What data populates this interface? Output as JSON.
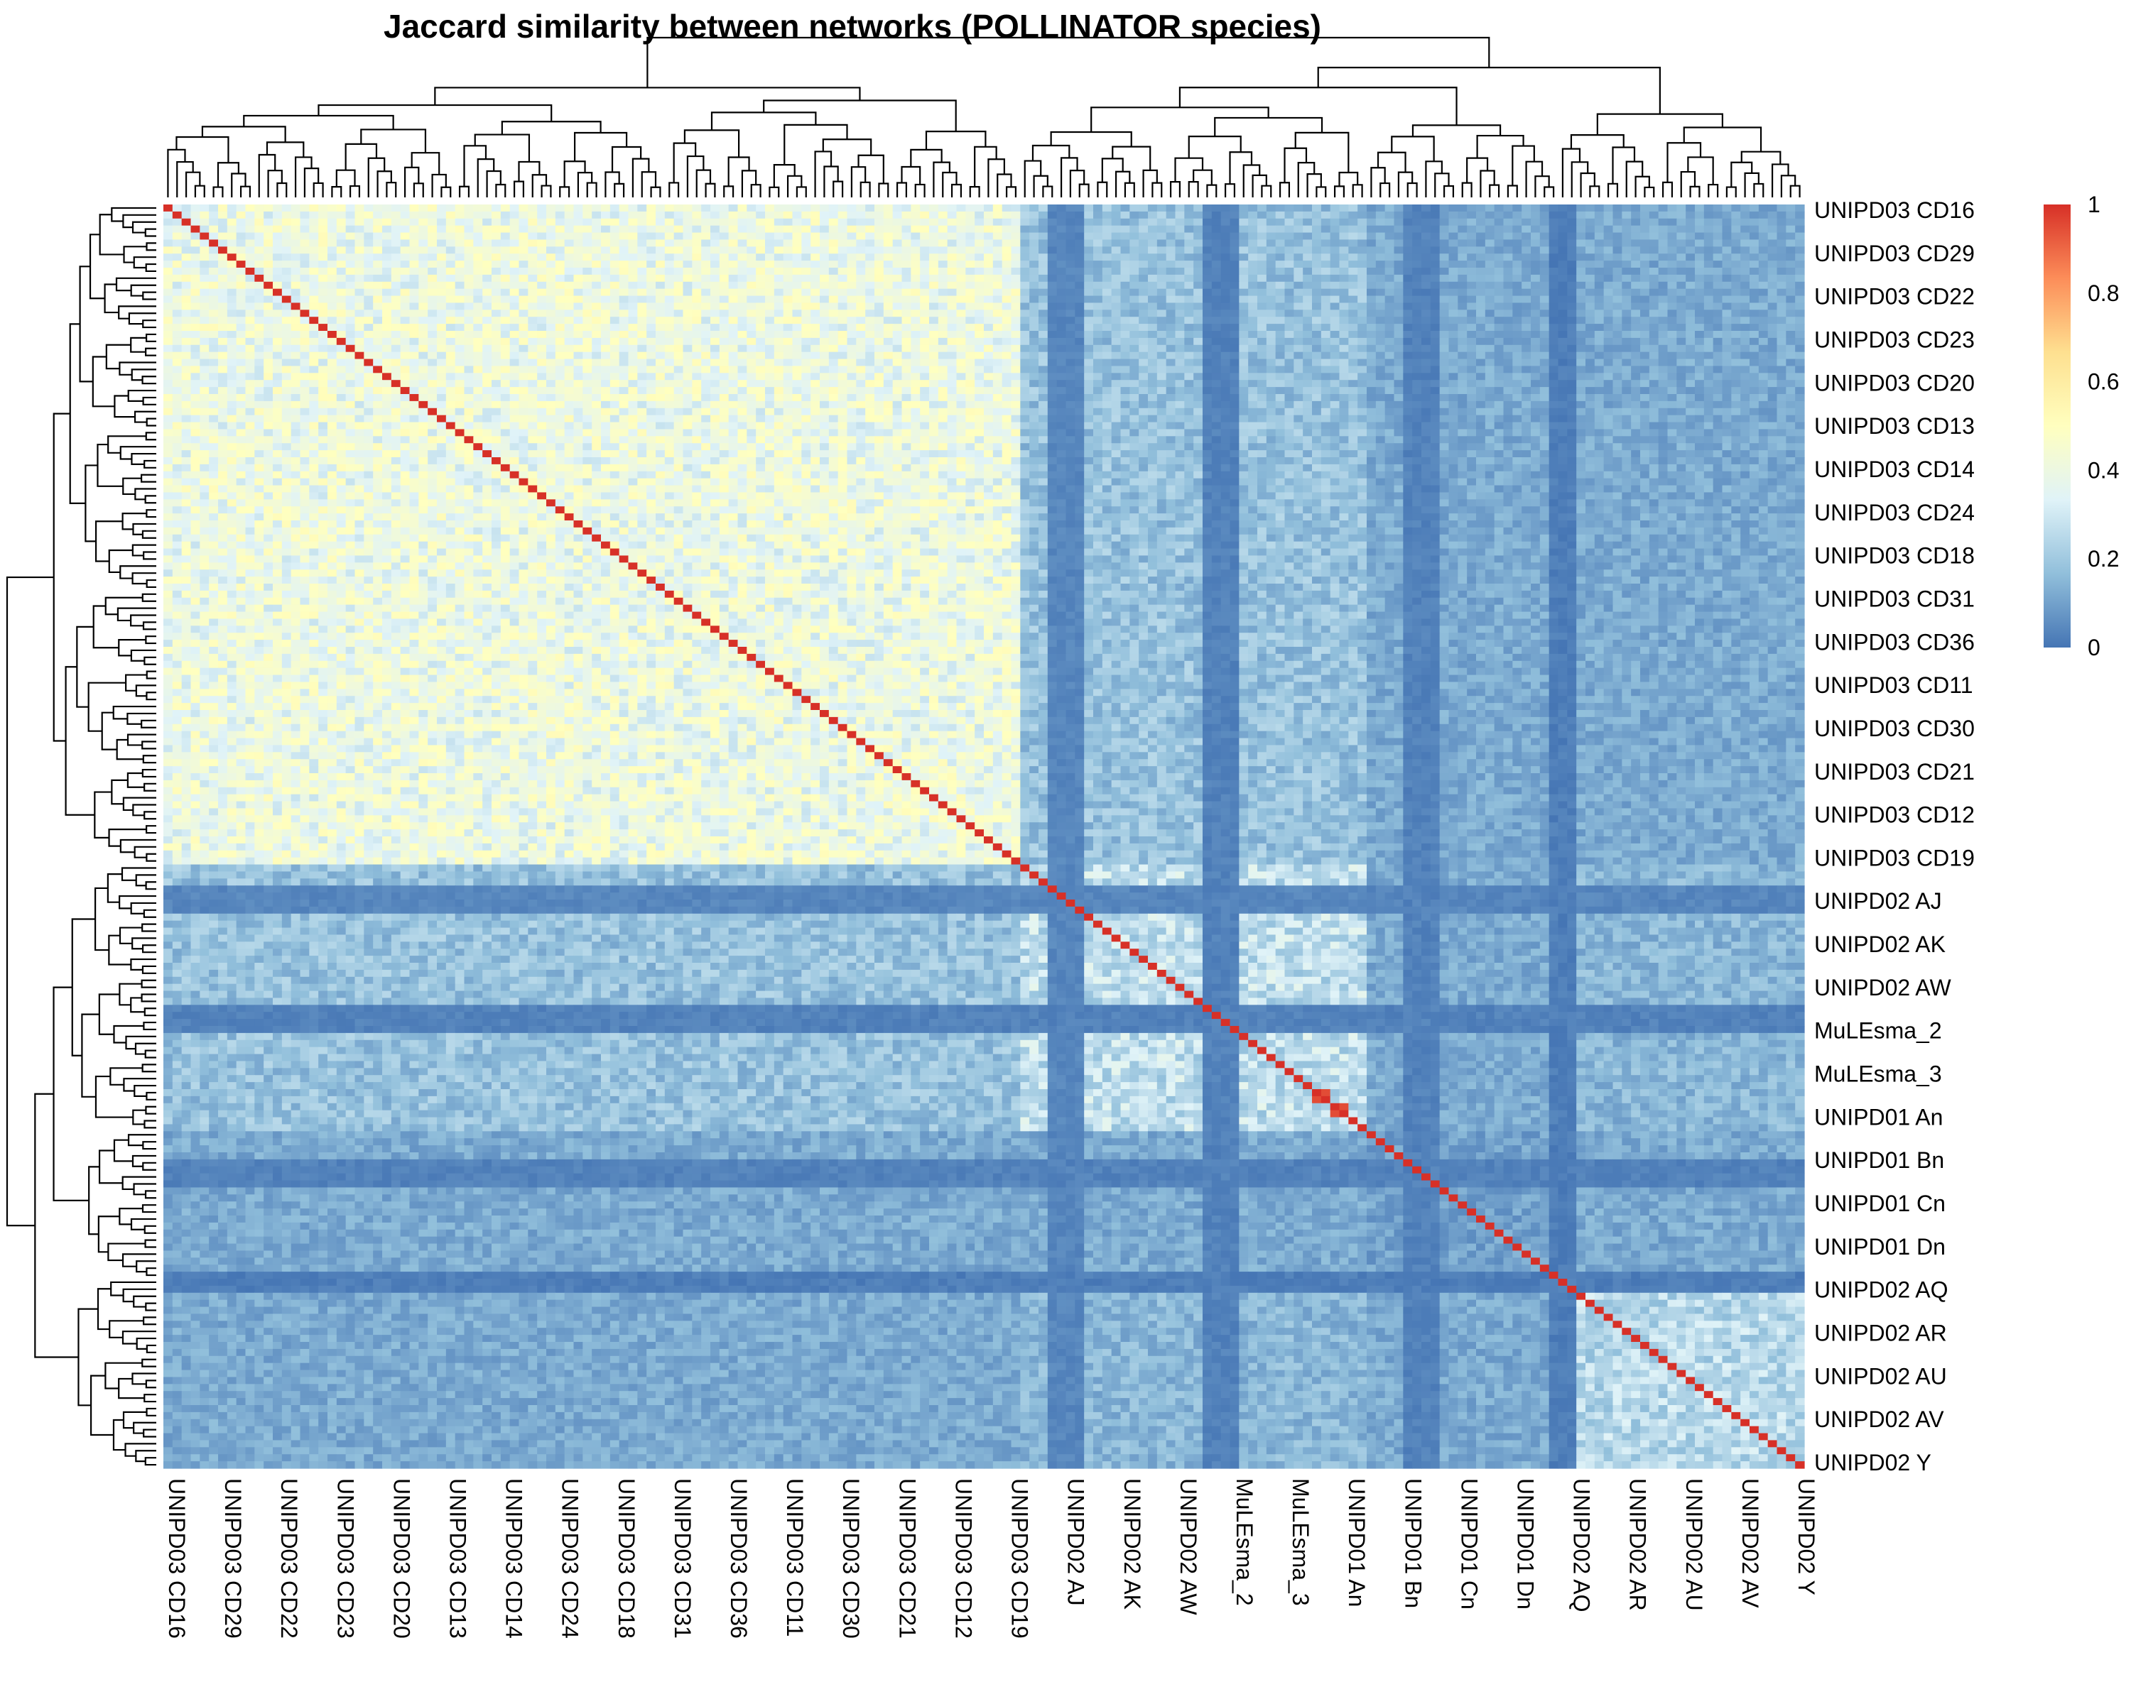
{
  "chart_data": {
    "type": "heatmap",
    "title": "Jaccard similarity between networks (POLLINATOR species)",
    "n": 180,
    "clusters": [
      {
        "start": 0,
        "end": 94,
        "mean": 0.4,
        "spread": 0.12
      },
      {
        "start": 94,
        "end": 132,
        "mean": 0.27,
        "spread": 0.1
      },
      {
        "start": 132,
        "end": 153,
        "mean": 0.1,
        "spread": 0.05
      },
      {
        "start": 153,
        "end": 180,
        "mean": 0.25,
        "spread": 0.09
      }
    ],
    "background": {
      "mean": 0.12,
      "spread": 0.05
    },
    "dark_rows": [
      {
        "start": 97,
        "end": 101,
        "mean": 0.04
      },
      {
        "start": 114,
        "end": 118,
        "mean": 0.03
      },
      {
        "start": 136,
        "end": 140,
        "mean": 0.03
      },
      {
        "start": 152,
        "end": 155,
        "mean": 0.02
      }
    ],
    "red_cells": [
      [
        126,
        127
      ],
      [
        127,
        126
      ],
      [
        128,
        129
      ],
      [
        129,
        128
      ]
    ],
    "diagonal": 1,
    "colorbar": {
      "min": 0,
      "max": 1,
      "ticks": [
        "0",
        "0.2",
        "0.4",
        "0.6",
        "0.8",
        "1"
      ]
    },
    "colors": [
      "#4575b4",
      "#91bfdb",
      "#e0f3f8",
      "#ffffbf",
      "#fee090",
      "#fc8d59",
      "#d73027"
    ],
    "dendrogram_color": "#000000",
    "row_labels": [
      "UNIPD03 CD16",
      "UNIPD03 CD29",
      "UNIPD03 CD22",
      "UNIPD03 CD23",
      "UNIPD03 CD20",
      "UNIPD03 CD13",
      "UNIPD03 CD14",
      "UNIPD03 CD24",
      "UNIPD03 CD18",
      "UNIPD03 CD31",
      "UNIPD03 CD36",
      "UNIPD03 CD11",
      "UNIPD03 CD30",
      "UNIPD03 CD21",
      "UNIPD03 CD12",
      "UNIPD03 CD19",
      "UNIPD02 AJ",
      "UNIPD02 AK",
      "UNIPD02 AW",
      "MuLEsma_2",
      "MuLEsma_3",
      "UNIPD01 An",
      "UNIPD01 Bn",
      "UNIPD01 Cn",
      "UNIPD01 Dn",
      "UNIPD02 AQ",
      "UNIPD02 AR",
      "UNIPD02 AU",
      "UNIPD02 AV",
      "UNIPD02 Y"
    ],
    "column_labels": [
      "UNIPD03 CD16",
      "UNIPD03 CD29",
      "UNIPD03 CD22",
      "UNIPD03 CD23",
      "UNIPD03 CD20",
      "UNIPD03 CD13",
      "UNIPD03 CD14",
      "UNIPD03 CD24",
      "UNIPD03 CD18",
      "UNIPD03 CD31",
      "UNIPD03 CD36",
      "UNIPD03 CD11",
      "UNIPD03 CD30",
      "UNIPD03 CD21",
      "UNIPD03 CD12",
      "UNIPD03 CD19",
      "UNIPD02 AJ",
      "UNIPD02 AK",
      "UNIPD02 AW",
      "MuLEsma_2",
      "MuLEsma_3",
      "UNIPD01 An",
      "UNIPD01 Bn",
      "UNIPD01 Cn",
      "UNIPD01 Dn",
      "UNIPD02 AQ",
      "UNIPD02 AR",
      "UNIPD02 AU",
      "UNIPD02 AV",
      "UNIPD02 Y"
    ]
  }
}
